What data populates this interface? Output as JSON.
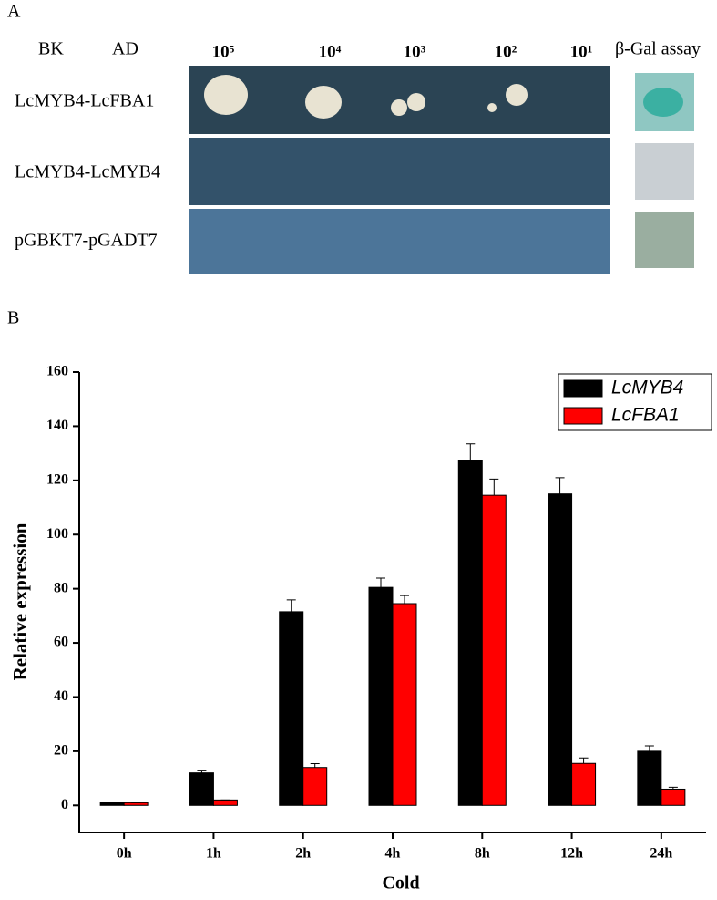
{
  "panel_a": {
    "label": "A",
    "headers": {
      "bk": "BK",
      "ad": "AD",
      "dilutions": [
        "10⁵",
        "10⁴",
        "10³",
        "10²",
        "10¹"
      ],
      "assay": "β-Gal assay"
    },
    "rows": [
      "LcMYB4-LcFBA1",
      "LcMYB4-LcMYB4",
      "pGBKT7-pGADT7"
    ]
  },
  "chart_data": {
    "type": "bar",
    "panel_label": "B",
    "x_label": "Cold",
    "y_label": "Relative expression",
    "categories": [
      "0h",
      "1h",
      "2h",
      "4h",
      "8h",
      "12h",
      "24h"
    ],
    "series": [
      {
        "name": "LcMYB4",
        "color": "#000000",
        "values": [
          1,
          12,
          71.5,
          80.5,
          127.5,
          115,
          20
        ],
        "errors": [
          0,
          1,
          4.4,
          3.4,
          6,
          6,
          2
        ]
      },
      {
        "name": "LcFBA1",
        "color": "#ff0000",
        "values": [
          1,
          2,
          14,
          74.5,
          114.5,
          15.5,
          6
        ],
        "errors": [
          0,
          0,
          1.4,
          3,
          6,
          2,
          0.7
        ]
      }
    ],
    "ylim": [
      -10,
      160
    ],
    "yticks": [
      0,
      20,
      40,
      60,
      80,
      100,
      120,
      140,
      160
    ],
    "legend": "upper right"
  }
}
